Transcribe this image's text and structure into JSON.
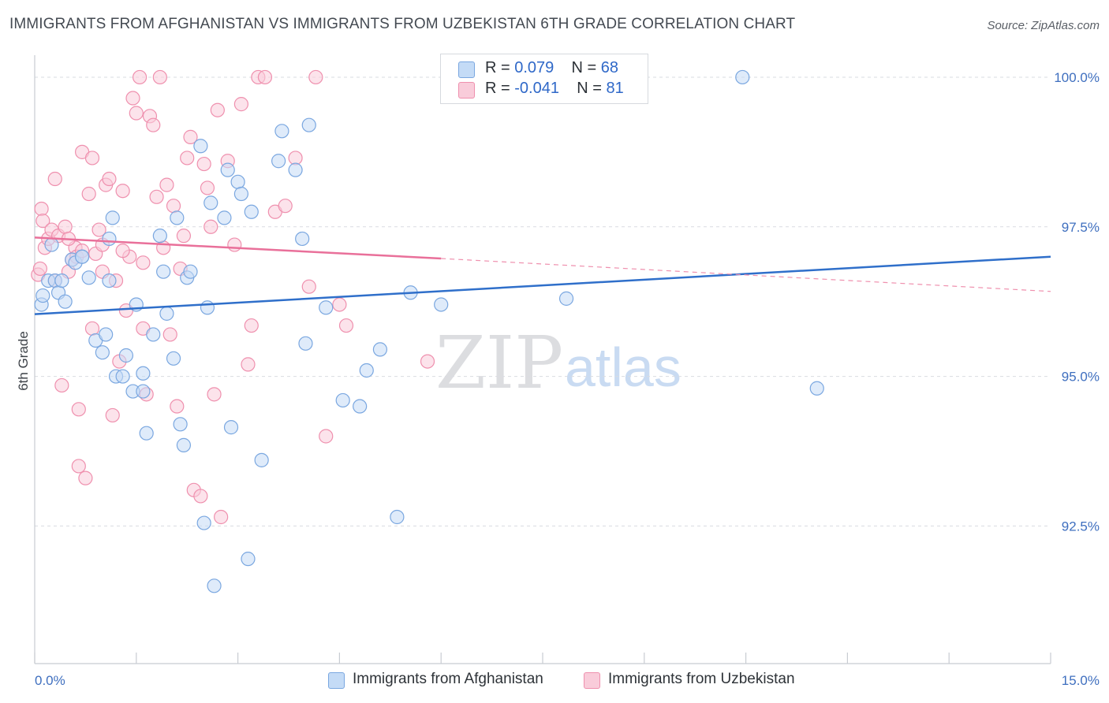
{
  "header": {
    "title": "IMMIGRANTS FROM AFGHANISTAN VS IMMIGRANTS FROM UZBEKISTAN 6TH GRADE CORRELATION CHART",
    "source": "Source: ZipAtlas.com"
  },
  "legend_top": {
    "rows": [
      {
        "r_label": "R = ",
        "r_value": "0.079",
        "n_label": "N = ",
        "n_value": "68",
        "color": "#aac8ef"
      },
      {
        "r_label": "R = ",
        "r_value": "-0.041",
        "n_label": "N = ",
        "n_value": "81",
        "color": "#f6b8cc"
      }
    ]
  },
  "legend_bottom": {
    "items": [
      {
        "label": "Immigrants from Afghanistan",
        "color": "#aac8ef"
      },
      {
        "label": "Immigrants from Uzbekistan",
        "color": "#f6b8cc"
      }
    ]
  },
  "watermark": {
    "zip": "ZIP",
    "atlas": "atlas"
  },
  "chart_data": {
    "type": "scatter",
    "title": "IMMIGRANTS FROM AFGHANISTAN VS IMMIGRANTS FROM UZBEKISTAN 6TH GRADE CORRELATION CHART",
    "xlabel": "",
    "ylabel": "6th Grade",
    "xlim": [
      0,
      15
    ],
    "ylim": [
      90.2,
      100.5
    ],
    "x_tick_labels": [
      "0.0%",
      "15.0%"
    ],
    "y_ticks": [
      92.5,
      95.0,
      97.5,
      100.0
    ],
    "y_tick_labels": [
      "92.5%",
      "95.0%",
      "97.5%",
      "100.0%"
    ],
    "grid": "horizontal dashed",
    "legend_position": "top-center",
    "series": [
      {
        "name": "Immigrants from Afghanistan",
        "color": "#7aa7e0",
        "trend": {
          "x0": 0.0,
          "y0": 96.04,
          "x1": 15.0,
          "y1": 97.0
        },
        "points": [
          [
            0.1,
            96.2
          ],
          [
            0.12,
            96.35
          ],
          [
            0.2,
            96.6
          ],
          [
            0.25,
            97.2
          ],
          [
            0.3,
            96.6
          ],
          [
            0.35,
            96.4
          ],
          [
            0.45,
            96.25
          ],
          [
            0.55,
            96.95
          ],
          [
            0.6,
            96.9
          ],
          [
            0.7,
            97.0
          ],
          [
            0.8,
            96.65
          ],
          [
            0.9,
            95.6
          ],
          [
            1.0,
            95.4
          ],
          [
            1.05,
            95.7
          ],
          [
            1.1,
            96.6
          ],
          [
            1.1,
            97.3
          ],
          [
            1.15,
            97.65
          ],
          [
            1.2,
            95.0
          ],
          [
            1.3,
            95.0
          ],
          [
            1.35,
            95.35
          ],
          [
            1.45,
            94.75
          ],
          [
            1.5,
            96.2
          ],
          [
            1.6,
            94.75
          ],
          [
            1.6,
            95.05
          ],
          [
            1.65,
            94.05
          ],
          [
            1.75,
            95.7
          ],
          [
            1.85,
            97.35
          ],
          [
            1.9,
            96.75
          ],
          [
            1.95,
            96.05
          ],
          [
            2.05,
            95.3
          ],
          [
            2.1,
            97.65
          ],
          [
            2.15,
            94.2
          ],
          [
            2.2,
            93.85
          ],
          [
            2.25,
            96.65
          ],
          [
            2.45,
            98.85
          ],
          [
            2.5,
            92.55
          ],
          [
            2.55,
            96.15
          ],
          [
            2.6,
            97.9
          ],
          [
            2.65,
            91.5
          ],
          [
            2.8,
            97.65
          ],
          [
            2.85,
            98.45
          ],
          [
            2.9,
            94.15
          ],
          [
            3.0,
            98.25
          ],
          [
            3.05,
            98.05
          ],
          [
            3.15,
            91.95
          ],
          [
            3.2,
            97.75
          ],
          [
            3.35,
            93.6
          ],
          [
            3.6,
            98.6
          ],
          [
            3.65,
            99.1
          ],
          [
            3.85,
            98.45
          ],
          [
            3.95,
            97.3
          ],
          [
            4.0,
            95.55
          ],
          [
            4.05,
            99.2
          ],
          [
            4.3,
            96.15
          ],
          [
            4.55,
            94.6
          ],
          [
            4.8,
            94.5
          ],
          [
            4.9,
            95.1
          ],
          [
            5.1,
            95.45
          ],
          [
            5.35,
            92.65
          ],
          [
            5.55,
            96.4
          ],
          [
            6.0,
            96.2
          ],
          [
            7.05,
            100.0
          ],
          [
            7.85,
            96.3
          ],
          [
            10.45,
            100.0
          ],
          [
            11.55,
            94.8
          ],
          [
            0.7,
            97.0
          ],
          [
            0.4,
            96.6
          ],
          [
            2.3,
            96.75
          ]
        ]
      },
      {
        "name": "Immigrants from Uzbekistan",
        "color": "#ef90ae",
        "trend": {
          "x0": 0.0,
          "y0": 97.32,
          "x1": 6.0,
          "y1": 96.97
        },
        "trend_extension": {
          "x0": 6.0,
          "y0": 96.97,
          "x1": 15.0,
          "y1": 96.42
        },
        "points": [
          [
            0.05,
            96.7
          ],
          [
            0.1,
            97.8
          ],
          [
            0.12,
            97.6
          ],
          [
            0.15,
            97.15
          ],
          [
            0.2,
            97.3
          ],
          [
            0.25,
            97.45
          ],
          [
            0.3,
            96.6
          ],
          [
            0.3,
            98.3
          ],
          [
            0.35,
            97.35
          ],
          [
            0.4,
            94.85
          ],
          [
            0.45,
            97.5
          ],
          [
            0.5,
            96.75
          ],
          [
            0.55,
            96.95
          ],
          [
            0.6,
            97.15
          ],
          [
            0.62,
            97.0
          ],
          [
            0.65,
            94.45
          ],
          [
            0.65,
            93.5
          ],
          [
            0.7,
            98.75
          ],
          [
            0.75,
            93.3
          ],
          [
            0.8,
            98.05
          ],
          [
            0.85,
            98.65
          ],
          [
            0.85,
            95.8
          ],
          [
            0.9,
            97.05
          ],
          [
            0.95,
            97.45
          ],
          [
            1.0,
            96.75
          ],
          [
            1.05,
            98.2
          ],
          [
            1.1,
            98.3
          ],
          [
            1.15,
            94.35
          ],
          [
            1.2,
            96.6
          ],
          [
            1.25,
            95.25
          ],
          [
            1.3,
            98.1
          ],
          [
            1.35,
            96.1
          ],
          [
            1.4,
            97.0
          ],
          [
            1.45,
            99.65
          ],
          [
            1.5,
            99.4
          ],
          [
            1.55,
            100.0
          ],
          [
            1.6,
            95.8
          ],
          [
            1.65,
            94.7
          ],
          [
            1.7,
            99.35
          ],
          [
            1.75,
            99.2
          ],
          [
            1.8,
            98.0
          ],
          [
            1.85,
            100.0
          ],
          [
            1.9,
            97.15
          ],
          [
            1.95,
            98.2
          ],
          [
            2.0,
            95.7
          ],
          [
            2.05,
            97.85
          ],
          [
            2.1,
            94.5
          ],
          [
            2.15,
            96.8
          ],
          [
            2.2,
            97.35
          ],
          [
            2.25,
            98.65
          ],
          [
            2.3,
            99.0
          ],
          [
            2.35,
            93.1
          ],
          [
            2.45,
            93.0
          ],
          [
            2.5,
            98.55
          ],
          [
            2.55,
            98.15
          ],
          [
            2.6,
            97.5
          ],
          [
            2.65,
            94.7
          ],
          [
            2.7,
            99.45
          ],
          [
            2.75,
            92.65
          ],
          [
            2.85,
            98.6
          ],
          [
            2.95,
            97.2
          ],
          [
            3.05,
            99.55
          ],
          [
            3.15,
            95.2
          ],
          [
            3.2,
            95.85
          ],
          [
            3.3,
            100.0
          ],
          [
            3.4,
            100.0
          ],
          [
            3.55,
            97.75
          ],
          [
            3.7,
            97.85
          ],
          [
            3.85,
            98.65
          ],
          [
            4.05,
            96.5
          ],
          [
            4.15,
            100.0
          ],
          [
            4.3,
            94.0
          ],
          [
            4.5,
            96.2
          ],
          [
            4.6,
            95.85
          ],
          [
            5.8,
            95.25
          ],
          [
            0.08,
            96.8
          ],
          [
            0.5,
            97.3
          ],
          [
            0.7,
            97.1
          ],
          [
            1.0,
            97.2
          ],
          [
            1.3,
            97.1
          ],
          [
            1.6,
            96.9
          ]
        ]
      }
    ]
  }
}
